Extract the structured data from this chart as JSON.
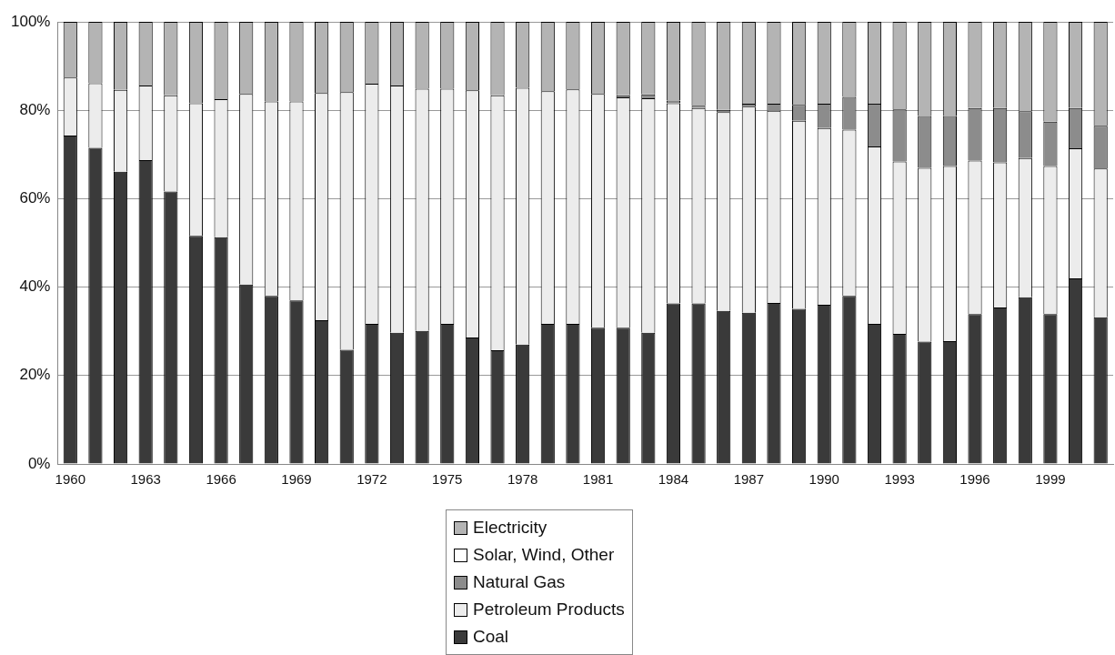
{
  "chart_data": {
    "type": "bar",
    "stacked": true,
    "grid": "y",
    "legend": "bottom",
    "categories": [
      "1960",
      null,
      null,
      "1963",
      null,
      null,
      "1966",
      null,
      null,
      "1969",
      null,
      null,
      "1972",
      null,
      null,
      "1975",
      null,
      null,
      "1978",
      null,
      null,
      "1981",
      null,
      null,
      "1984",
      null,
      null,
      "1987",
      null,
      null,
      "1990",
      null,
      null,
      "1993",
      null,
      null,
      "1996",
      null,
      null,
      "1999",
      null,
      null
    ],
    "ylim": [
      0,
      100
    ],
    "yticks": [
      {
        "value": 0,
        "label": "0%"
      },
      {
        "value": 20,
        "label": "20%"
      },
      {
        "value": 40,
        "label": "40%"
      },
      {
        "value": 60,
        "label": "60%"
      },
      {
        "value": 80,
        "label": "80%"
      },
      {
        "value": 100,
        "label": "100%"
      }
    ],
    "series": [
      {
        "name": "Coal",
        "color": "#3a3a3a",
        "values": [
          74.3,
          71.5,
          66.1,
          68.7,
          61.6,
          51.6,
          51.3,
          40.6,
          38.0,
          37.0,
          32.5,
          25.8,
          31.7,
          29.7,
          30.1,
          31.7,
          28.6,
          25.7,
          27.0,
          31.7,
          31.7,
          30.8,
          30.8,
          29.7,
          36.3,
          36.3,
          34.6,
          34.2,
          36.4,
          35.1,
          36.0,
          38.0,
          31.7,
          29.4,
          27.7,
          27.8,
          33.9,
          35.4,
          37.7,
          33.9,
          42.0,
          33.2
        ]
      },
      {
        "name": "Petroleum Products",
        "color": "#ececec",
        "values": [
          13.1,
          14.6,
          18.5,
          16.9,
          21.8,
          30.0,
          31.2,
          43.1,
          44.0,
          45.0,
          51.4,
          58.3,
          54.3,
          55.9,
          54.8,
          53.2,
          55.9,
          57.7,
          58.1,
          52.6,
          53.0,
          52.9,
          52.1,
          53.0,
          45.3,
          44.2,
          45.0,
          46.6,
          43.5,
          42.5,
          40.0,
          37.6,
          40.1,
          39.0,
          39.3,
          39.6,
          34.7,
          32.8,
          31.5,
          33.5,
          29.4,
          33.6
        ]
      },
      {
        "name": "Natural Gas",
        "color": "#8c8c8c",
        "values": [
          0,
          0,
          0,
          0,
          0,
          0,
          0,
          0,
          0,
          0,
          0,
          0,
          0,
          0,
          0,
          0,
          0,
          0,
          0,
          0,
          0,
          0,
          0.5,
          0.9,
          0.6,
          0.5,
          0.5,
          0.7,
          1.6,
          3.6,
          5.5,
          7.4,
          9.7,
          11.8,
          11.7,
          11.3,
          11.9,
          12.3,
          10.6,
          10.0,
          9.1,
          9.7
        ]
      },
      {
        "name": "Solar, Wind, Other",
        "color": "#ffffff",
        "values": [
          0,
          0,
          0,
          0,
          0,
          0,
          0,
          0,
          0,
          0,
          0,
          0,
          0,
          0,
          0,
          0,
          0,
          0,
          0,
          0,
          0,
          0,
          0,
          0,
          0,
          0,
          0,
          0,
          0,
          0,
          0,
          0,
          0,
          0,
          0,
          0,
          0,
          0,
          0,
          0,
          0,
          0
        ]
      },
      {
        "name": "Electricity",
        "color": "#b4b4b4",
        "values": [
          12.6,
          13.9,
          15.4,
          14.4,
          16.6,
          18.4,
          17.5,
          16.3,
          18.0,
          18.0,
          16.1,
          15.9,
          14.0,
          14.4,
          15.1,
          15.1,
          15.5,
          16.6,
          14.9,
          15.7,
          15.3,
          16.3,
          16.6,
          16.4,
          17.8,
          19.0,
          19.9,
          18.5,
          18.5,
          18.8,
          18.5,
          17.0,
          18.5,
          19.8,
          21.3,
          21.3,
          19.5,
          19.5,
          20.2,
          22.6,
          19.5,
          23.5
        ]
      }
    ]
  }
}
